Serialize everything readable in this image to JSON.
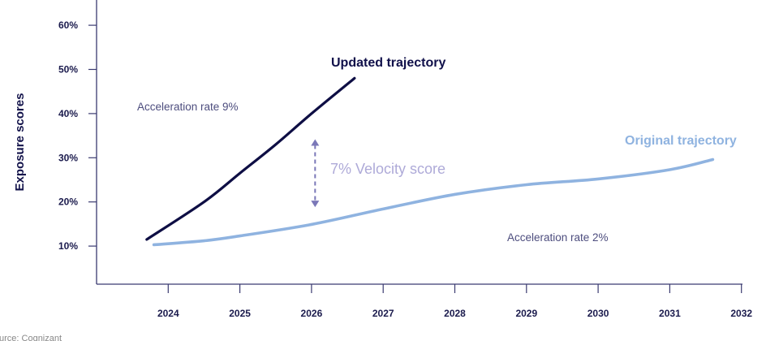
{
  "chart_data": {
    "type": "line",
    "title": "",
    "xlabel": "",
    "ylabel": "Exposure scores",
    "xlim": [
      2023,
      2032
    ],
    "ylim": [
      0,
      60
    ],
    "x_ticks": [
      "2024",
      "2025",
      "2026",
      "2027",
      "2028",
      "2029",
      "2030",
      "2031",
      "2032"
    ],
    "y_ticks": [
      "10%",
      "20%",
      "30%",
      "40%",
      "50%",
      "60%"
    ],
    "grid": false,
    "series": [
      {
        "name": "Updated trajectory",
        "color": "#0e0e44",
        "x": [
          2023.7,
          2024.5,
          2025,
          2025.5,
          2026,
          2026.6
        ],
        "y": [
          11.5,
          20,
          26.5,
          33,
          40,
          48
        ]
      },
      {
        "name": "Original trajectory",
        "color": "#8fb3e0",
        "x": [
          2023.8,
          2024.5,
          2025,
          2026,
          2027,
          2028,
          2029,
          2030,
          2031,
          2031.6
        ],
        "y": [
          10.3,
          11.2,
          12.3,
          14.9,
          18.4,
          21.7,
          23.9,
          25.2,
          27.3,
          29.6
        ]
      }
    ],
    "annotations": {
      "updated_label": "Updated trajectory",
      "original_label": "Original trajectory",
      "accel_updated": "Acceleration rate 9%",
      "accel_original": "Acceleration rate 2%",
      "velocity": "7% Velocity score",
      "velocity_arrow": {
        "x": 2026.05,
        "from": 34,
        "to": 19
      }
    },
    "source": "urce: Cognizant"
  }
}
